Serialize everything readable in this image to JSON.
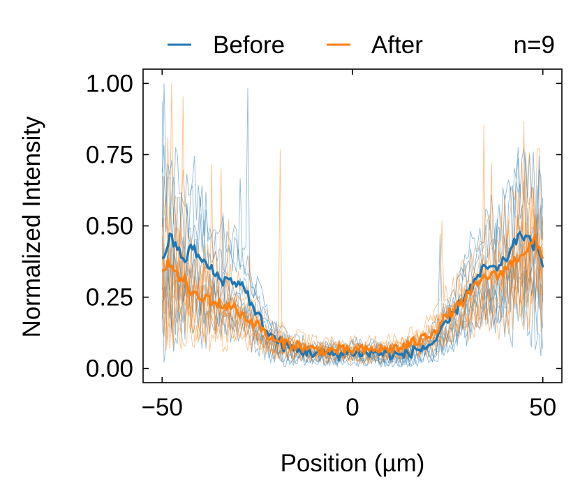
{
  "chart_data": {
    "type": "line",
    "title": "",
    "xlabel": "Position (µm)",
    "ylabel": "Normalized Intensity",
    "xlim": [
      -55,
      55
    ],
    "ylim": [
      -0.05,
      1.05
    ],
    "xticks": [
      -50,
      0,
      50
    ],
    "xtick_labels": [
      "−50",
      "0",
      "50"
    ],
    "yticks": [
      0.0,
      0.25,
      0.5,
      0.75,
      1.0
    ],
    "ytick_labels": [
      "0.00",
      "0.25",
      "0.50",
      "0.75",
      "1.00"
    ],
    "grid": false,
    "legend_position": "top",
    "annotation": "n=9",
    "n_traces": 9,
    "series": [
      {
        "name": "Before",
        "color": "#1f77b4",
        "mean": {
          "x": [
            -50,
            -48,
            -46,
            -44,
            -42,
            -40,
            -38,
            -36,
            -34,
            -32,
            -30,
            -28,
            -26,
            -24,
            -22,
            -20,
            -18,
            -16,
            -14,
            -12,
            -10,
            -8,
            -6,
            -4,
            -2,
            0,
            2,
            4,
            6,
            8,
            10,
            12,
            14,
            16,
            18,
            20,
            22,
            24,
            26,
            28,
            30,
            32,
            34,
            36,
            38,
            40,
            42,
            44,
            46,
            48,
            50
          ],
          "y": [
            0.38,
            0.46,
            0.42,
            0.38,
            0.43,
            0.38,
            0.36,
            0.33,
            0.31,
            0.31,
            0.3,
            0.28,
            0.2,
            0.17,
            0.12,
            0.1,
            0.08,
            0.07,
            0.06,
            0.06,
            0.055,
            0.055,
            0.05,
            0.05,
            0.05,
            0.06,
            0.055,
            0.05,
            0.06,
            0.05,
            0.05,
            0.045,
            0.05,
            0.06,
            0.07,
            0.08,
            0.1,
            0.14,
            0.18,
            0.22,
            0.27,
            0.3,
            0.34,
            0.36,
            0.34,
            0.38,
            0.42,
            0.48,
            0.45,
            0.43,
            0.36
          ]
        }
      },
      {
        "name": "After",
        "color": "#ff7f0e",
        "mean": {
          "x": [
            -50,
            -48,
            -46,
            -44,
            -42,
            -40,
            -38,
            -36,
            -34,
            -32,
            -30,
            -28,
            -26,
            -24,
            -22,
            -20,
            -18,
            -16,
            -14,
            -12,
            -10,
            -8,
            -6,
            -4,
            -2,
            0,
            2,
            4,
            6,
            8,
            10,
            12,
            14,
            16,
            18,
            20,
            22,
            24,
            26,
            28,
            30,
            32,
            34,
            36,
            38,
            40,
            42,
            44,
            46,
            48,
            50
          ],
          "y": [
            0.36,
            0.37,
            0.32,
            0.31,
            0.26,
            0.24,
            0.25,
            0.23,
            0.22,
            0.22,
            0.2,
            0.18,
            0.16,
            0.14,
            0.11,
            0.09,
            0.09,
            0.085,
            0.08,
            0.07,
            0.065,
            0.065,
            0.06,
            0.065,
            0.06,
            0.065,
            0.065,
            0.06,
            0.07,
            0.065,
            0.07,
            0.07,
            0.08,
            0.09,
            0.1,
            0.12,
            0.14,
            0.17,
            0.2,
            0.22,
            0.25,
            0.28,
            0.31,
            0.33,
            0.32,
            0.35,
            0.37,
            0.4,
            0.42,
            0.45,
            0.38
          ]
        }
      }
    ]
  }
}
